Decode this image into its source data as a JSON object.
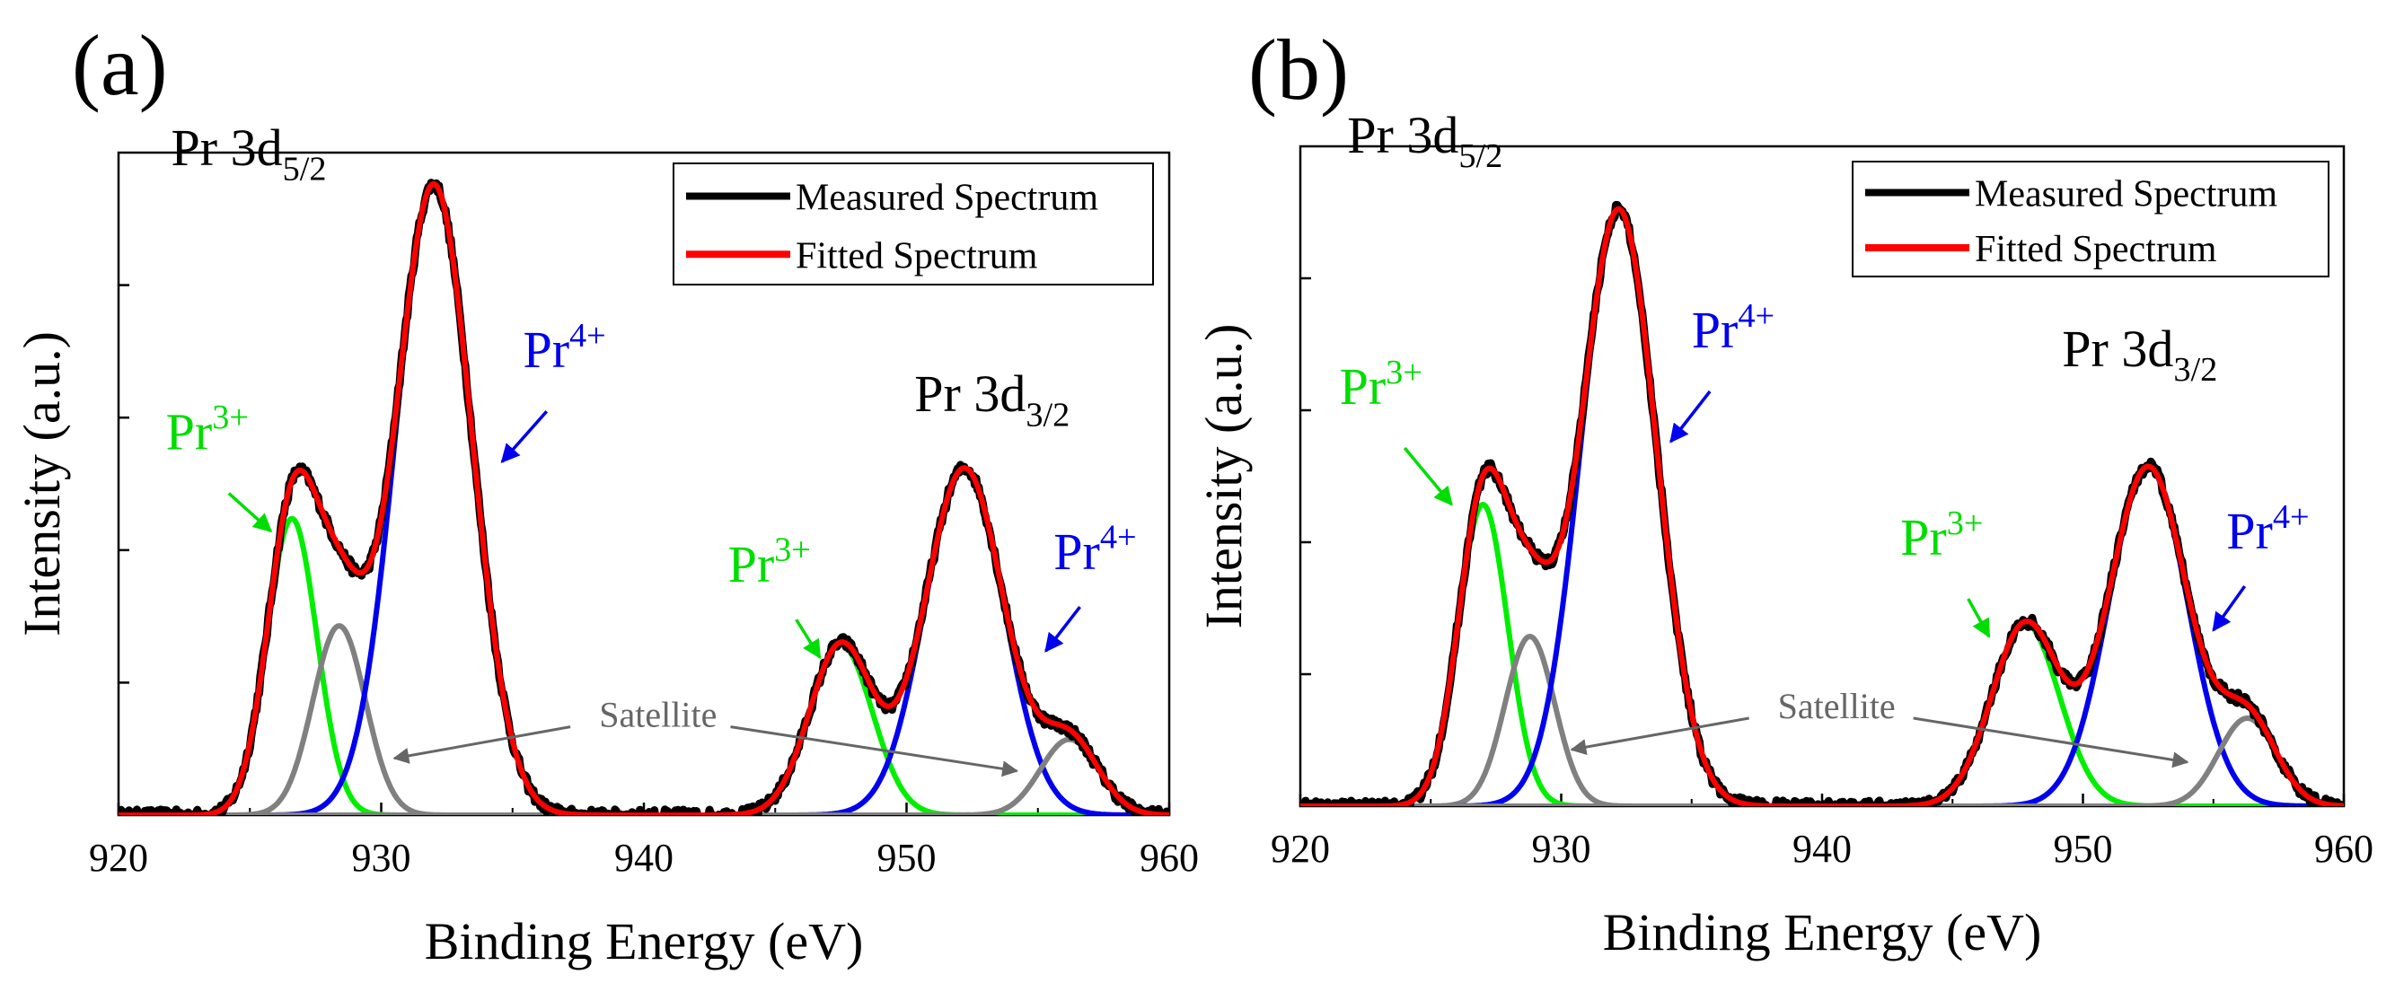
{
  "figure": {
    "panels": [
      {
        "label": "(a)"
      },
      {
        "label": "(b)"
      }
    ]
  },
  "chart_data": [
    {
      "type": "line",
      "panel": "(a)",
      "xlabel": "Binding Energy (eV)",
      "ylabel": "Intensity (a.u.)",
      "xlim": [
        920,
        960
      ],
      "ylim": [
        0,
        1.05
      ],
      "xticks": [
        920,
        930,
        940,
        950,
        960
      ],
      "legend": {
        "position": "top-right",
        "entries": [
          {
            "label": "Measured Spectrum",
            "color": "#000000"
          },
          {
            "label": "Fitted Spectrum",
            "color": "#ff0000"
          }
        ]
      },
      "annotations": [
        {
          "id": "pr3d52",
          "base": "Pr 3d",
          "sub": "5/2",
          "color": "#000000",
          "at": [
            922.0,
            1.03
          ],
          "size": 58
        },
        {
          "id": "pr3d32",
          "base": "Pr 3d",
          "sub": "3/2",
          "color": "#000000",
          "at": [
            950.3,
            0.64
          ],
          "size": 58
        },
        {
          "id": "pr3-left",
          "base": "Pr",
          "sup": "3+",
          "color": "#00dd00",
          "at": [
            921.8,
            0.58
          ],
          "size": 58,
          "arrow": [
            [
              924.2,
              0.51
            ],
            [
              925.8,
              0.45
            ]
          ]
        },
        {
          "id": "pr4-left",
          "base": "Pr",
          "sup": "4+",
          "color": "#0000ee",
          "at": [
            935.4,
            0.71
          ],
          "size": 58,
          "arrow": [
            [
              936.3,
              0.64
            ],
            [
              934.6,
              0.56
            ]
          ]
        },
        {
          "id": "pr3-right",
          "base": "Pr",
          "sup": "3+",
          "color": "#00dd00",
          "at": [
            943.2,
            0.37
          ],
          "size": 58,
          "arrow": [
            [
              945.8,
              0.31
            ],
            [
              946.7,
              0.25
            ]
          ]
        },
        {
          "id": "pr4-right",
          "base": "Pr",
          "sup": "4+",
          "color": "#0000ee",
          "at": [
            955.6,
            0.39
          ],
          "size": 58,
          "arrow": [
            [
              956.6,
              0.33
            ],
            [
              955.3,
              0.26
            ]
          ]
        },
        {
          "id": "satellite",
          "text": "Satellite",
          "color": "#666666",
          "at": [
            938.3,
            0.14
          ],
          "size": 40,
          "arrows": [
            [
              [
                937.2,
                0.14
              ],
              [
                930.5,
                0.09
              ]
            ],
            [
              [
                943.3,
                0.14
              ],
              [
                954.2,
                0.07
              ]
            ]
          ]
        }
      ],
      "components": [
        {
          "name": "Pr3+ 3d5/2",
          "color": "#00ee00",
          "center": 926.6,
          "amplitude": 0.47,
          "sigma": 0.95
        },
        {
          "name": "Satellite 3d5/2",
          "color": "#808080",
          "center": 928.4,
          "amplitude": 0.3,
          "sigma": 1.0
        },
        {
          "name": "Pr4+ 3d5/2",
          "color": "#0000ee",
          "center": 932.0,
          "amplitude": 1.0,
          "sigma": 1.45
        },
        {
          "name": "Pr3+ 3d3/2",
          "color": "#00ee00",
          "center": 947.5,
          "amplitude": 0.27,
          "sigma": 1.2
        },
        {
          "name": "Pr4+ 3d3/2",
          "color": "#0000ee",
          "center": 952.2,
          "amplitude": 0.55,
          "sigma": 1.5
        },
        {
          "name": "Satellite 3d3/2",
          "color": "#808080",
          "center": 956.2,
          "amplitude": 0.12,
          "sigma": 1.1
        }
      ]
    },
    {
      "type": "line",
      "panel": "(b)",
      "xlabel": "Binding Energy (eV)",
      "ylabel": "Intensity (a.u.)",
      "xlim": [
        920,
        960
      ],
      "ylim": [
        0,
        1.05
      ],
      "xticks": [
        920,
        930,
        940,
        950,
        960
      ],
      "legend": {
        "position": "top-right",
        "entries": [
          {
            "label": "Measured Spectrum",
            "color": "#000000"
          },
          {
            "label": "Fitted Spectrum",
            "color": "#ff0000"
          }
        ]
      },
      "annotations": [
        {
          "id": "pr3d52",
          "base": "Pr 3d",
          "sub": "5/2",
          "color": "#000000",
          "at": [
            921.8,
            1.04
          ],
          "size": 58
        },
        {
          "id": "pr3d32",
          "base": "Pr 3d",
          "sub": "3/2",
          "color": "#000000",
          "at": [
            949.2,
            0.7
          ],
          "size": 58
        },
        {
          "id": "pr3-left",
          "base": "Pr",
          "sup": "3+",
          "color": "#00dd00",
          "at": [
            921.5,
            0.64
          ],
          "size": 58,
          "arrow": [
            [
              924.0,
              0.57
            ],
            [
              925.8,
              0.48
            ]
          ]
        },
        {
          "id": "pr4-left",
          "base": "Pr",
          "sup": "4+",
          "color": "#0000ee",
          "at": [
            935.0,
            0.73
          ],
          "size": 58,
          "arrow": [
            [
              935.7,
              0.66
            ],
            [
              934.2,
              0.58
            ]
          ]
        },
        {
          "id": "pr3-right",
          "base": "Pr",
          "sup": "3+",
          "color": "#00dd00",
          "at": [
            943.0,
            0.4
          ],
          "size": 58,
          "arrow": [
            [
              945.6,
              0.33
            ],
            [
              946.4,
              0.27
            ]
          ]
        },
        {
          "id": "pr4-right",
          "base": "Pr",
          "sup": "4+",
          "color": "#0000ee",
          "at": [
            955.5,
            0.41
          ],
          "size": 58,
          "arrow": [
            [
              956.2,
              0.35
            ],
            [
              955.0,
              0.28
            ]
          ]
        },
        {
          "id": "satellite",
          "text": "Satellite",
          "color": "#666666",
          "at": [
            938.3,
            0.14
          ],
          "size": 40,
          "arrows": [
            [
              [
                937.2,
                0.14
              ],
              [
                930.4,
                0.09
              ]
            ],
            [
              [
                943.5,
                0.14
              ],
              [
                954.0,
                0.07
              ]
            ]
          ]
        }
      ],
      "components": [
        {
          "name": "Pr3+ 3d5/2",
          "color": "#00ee00",
          "center": 927.0,
          "amplitude": 0.48,
          "sigma": 0.95
        },
        {
          "name": "Satellite 3d5/2",
          "color": "#808080",
          "center": 928.8,
          "amplitude": 0.27,
          "sigma": 0.95
        },
        {
          "name": "Pr4+ 3d5/2",
          "color": "#0000ee",
          "center": 932.2,
          "amplitude": 0.95,
          "sigma": 1.45
        },
        {
          "name": "Pr3+ 3d3/2",
          "color": "#00ee00",
          "center": 947.8,
          "amplitude": 0.29,
          "sigma": 1.3
        },
        {
          "name": "Pr4+ 3d3/2",
          "color": "#0000ee",
          "center": 952.5,
          "amplitude": 0.54,
          "sigma": 1.5
        },
        {
          "name": "Satellite 3d3/2",
          "color": "#808080",
          "center": 956.3,
          "amplitude": 0.14,
          "sigma": 1.1
        }
      ]
    }
  ]
}
